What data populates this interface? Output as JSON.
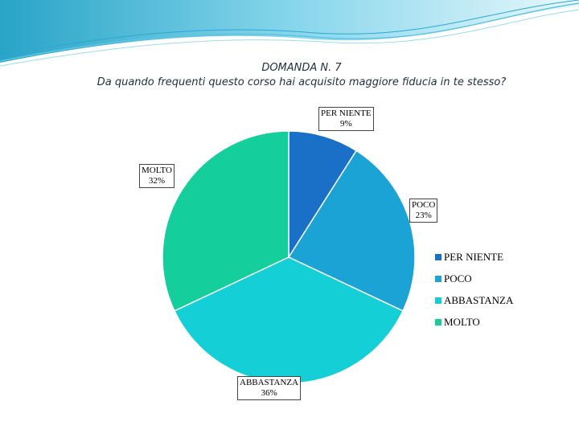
{
  "title": {
    "line1": "DOMANDA N. 7",
    "line2": "Da quando frequenti questo corso hai acquisito maggiore fiducia in te stesso?"
  },
  "chart_data": {
    "type": "pie",
    "title": "DOMANDA N. 7 — Da quando frequenti questo corso hai acquisito maggiore fiducia in te stesso?",
    "categories": [
      "PER NIENTE",
      "POCO",
      "ABBASTANZA",
      "MOLTO"
    ],
    "values": [
      9,
      23,
      36,
      32
    ],
    "value_labels": [
      "9%",
      "23%",
      "36%",
      "32%"
    ],
    "colors": [
      "#1a6fc6",
      "#1ba3d6",
      "#14cfd6",
      "#14cf9c"
    ],
    "legend_position": "right"
  },
  "legend": {
    "items": [
      {
        "label": "PER NIENTE",
        "color": "#1a6fc6"
      },
      {
        "label": "POCO",
        "color": "#1ba3d6"
      },
      {
        "label": "ABBASTANZA",
        "color": "#14cfd6"
      },
      {
        "label": "MOLTO",
        "color": "#14cf9c"
      }
    ]
  }
}
